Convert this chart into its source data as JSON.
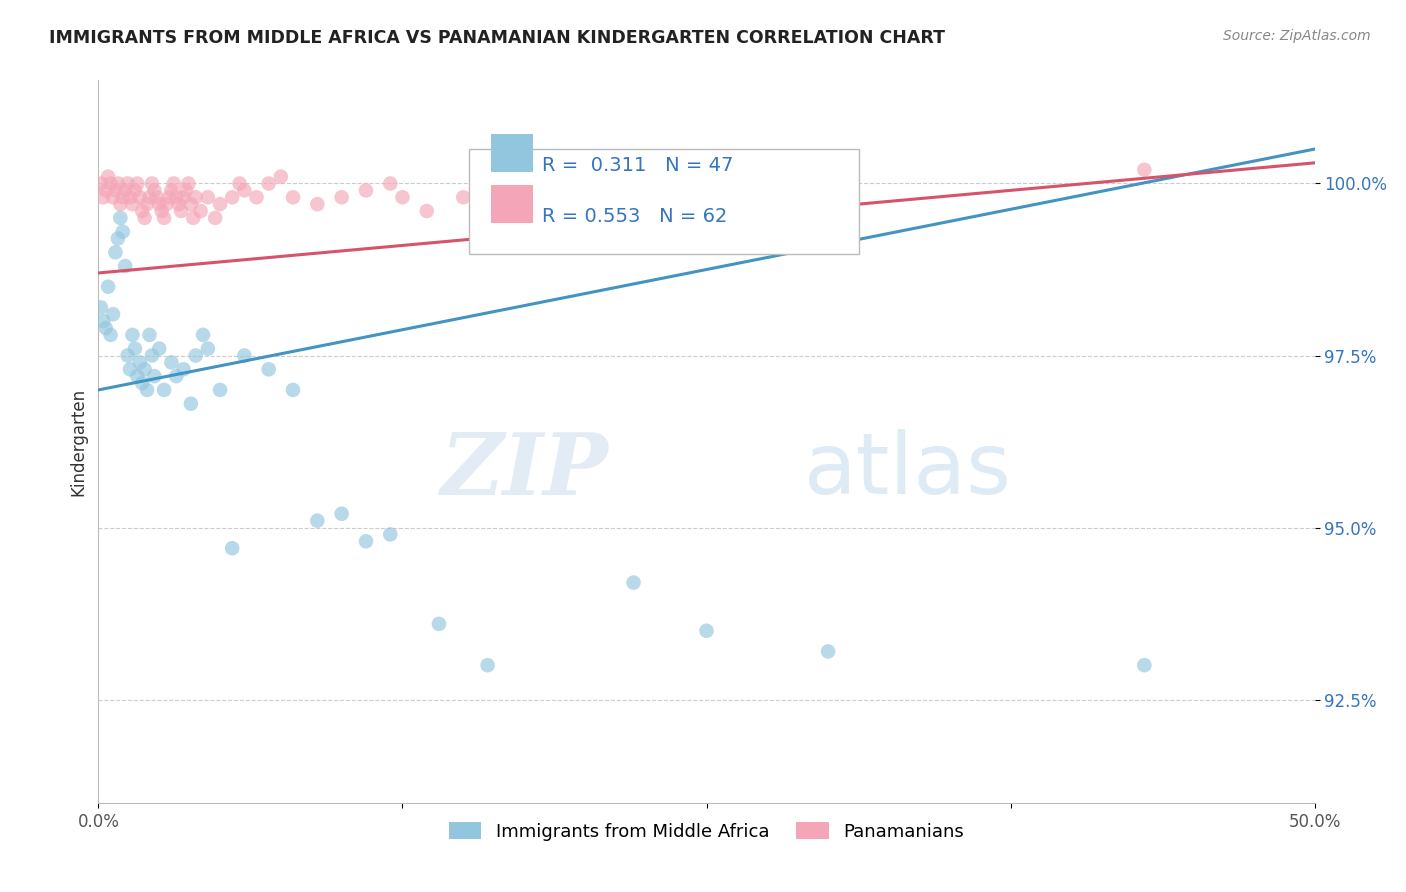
{
  "title": "IMMIGRANTS FROM MIDDLE AFRICA VS PANAMANIAN KINDERGARTEN CORRELATION CHART",
  "source": "Source: ZipAtlas.com",
  "ylabel": "Kindergarten",
  "xlim": [
    0.0,
    50.0
  ],
  "ylim": [
    91.0,
    101.5
  ],
  "x_ticks": [
    0.0,
    12.5,
    25.0,
    37.5,
    50.0
  ],
  "x_tick_labels": [
    "0.0%",
    "",
    "",
    "",
    "50.0%"
  ],
  "y_ticks": [
    92.5,
    95.0,
    97.5,
    100.0
  ],
  "y_tick_labels": [
    "92.5%",
    "95.0%",
    "97.5%",
    "100.0%"
  ],
  "legend_label1": "Immigrants from Middle Africa",
  "legend_label2": "Panamanians",
  "r1": 0.311,
  "n1": 47,
  "r2": 0.553,
  "n2": 62,
  "blue_color": "#92C5DE",
  "pink_color": "#F4A6B8",
  "blue_line_color": "#4393C3",
  "pink_line_color": "#D6536A",
  "watermark_zip": "ZIP",
  "watermark_atlas": "atlas",
  "blue_line_y0": 97.0,
  "blue_line_y1": 100.5,
  "pink_line_y0": 98.7,
  "pink_line_y1": 100.3,
  "blue_scatter_x": [
    0.1,
    0.2,
    0.3,
    0.4,
    0.5,
    0.6,
    0.7,
    0.8,
    0.9,
    1.0,
    1.1,
    1.2,
    1.3,
    1.4,
    1.5,
    1.6,
    1.7,
    1.8,
    1.9,
    2.0,
    2.1,
    2.2,
    2.3,
    2.5,
    2.7,
    3.0,
    3.2,
    3.5,
    3.8,
    4.0,
    4.3,
    4.5,
    5.0,
    5.5,
    6.0,
    7.0,
    8.0,
    9.0,
    10.0,
    11.0,
    12.0,
    14.0,
    16.0,
    22.0,
    25.0,
    30.0,
    43.0
  ],
  "blue_scatter_y": [
    98.2,
    98.0,
    97.9,
    98.5,
    97.8,
    98.1,
    99.0,
    99.2,
    99.5,
    99.3,
    98.8,
    97.5,
    97.3,
    97.8,
    97.6,
    97.2,
    97.4,
    97.1,
    97.3,
    97.0,
    97.8,
    97.5,
    97.2,
    97.6,
    97.0,
    97.4,
    97.2,
    97.3,
    96.8,
    97.5,
    97.8,
    97.6,
    97.0,
    94.7,
    97.5,
    97.3,
    97.0,
    95.1,
    95.2,
    94.8,
    94.9,
    93.6,
    93.0,
    94.2,
    93.5,
    93.2,
    93.0
  ],
  "pink_scatter_x": [
    0.1,
    0.2,
    0.3,
    0.4,
    0.5,
    0.6,
    0.7,
    0.8,
    0.9,
    1.0,
    1.1,
    1.2,
    1.3,
    1.4,
    1.5,
    1.6,
    1.7,
    1.8,
    1.9,
    2.0,
    2.1,
    2.2,
    2.3,
    2.4,
    2.5,
    2.6,
    2.7,
    2.8,
    2.9,
    3.0,
    3.1,
    3.2,
    3.3,
    3.4,
    3.5,
    3.6,
    3.7,
    3.8,
    3.9,
    4.0,
    4.2,
    4.5,
    4.8,
    5.0,
    5.5,
    5.8,
    6.0,
    6.5,
    7.0,
    7.5,
    8.0,
    9.0,
    10.0,
    11.0,
    12.0,
    12.5,
    13.5,
    15.0,
    17.0,
    19.0,
    21.0,
    43.0
  ],
  "pink_scatter_y": [
    100.0,
    99.8,
    99.9,
    100.1,
    100.0,
    99.8,
    99.9,
    100.0,
    99.7,
    99.8,
    99.9,
    100.0,
    99.8,
    99.7,
    99.9,
    100.0,
    99.8,
    99.6,
    99.5,
    99.7,
    99.8,
    100.0,
    99.9,
    99.8,
    99.7,
    99.6,
    99.5,
    99.7,
    99.8,
    99.9,
    100.0,
    99.8,
    99.7,
    99.6,
    99.8,
    99.9,
    100.0,
    99.7,
    99.5,
    99.8,
    99.6,
    99.8,
    99.5,
    99.7,
    99.8,
    100.0,
    99.9,
    99.8,
    100.0,
    100.1,
    99.8,
    99.7,
    99.8,
    99.9,
    100.0,
    99.8,
    99.6,
    99.8,
    99.5,
    99.7,
    99.8,
    100.2
  ]
}
